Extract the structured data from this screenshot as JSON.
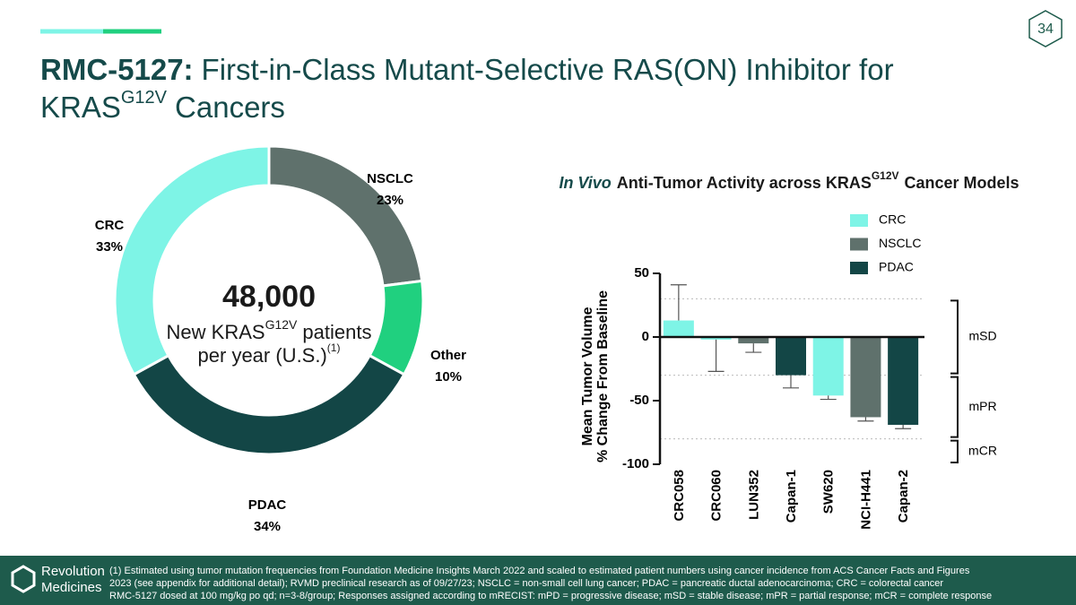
{
  "page_number": "34",
  "title": {
    "lead": "RMC-5127:",
    "line1": "First-in-Class Mutant-Selective RAS(ON) Inhibitor for",
    "line2": "KRAS",
    "superscript": "G12V",
    "tail": "Cancers"
  },
  "chart_data": [
    {
      "type": "pie",
      "categories": [
        "NSCLC",
        "Other",
        "PDAC",
        "CRC"
      ],
      "values": [
        23,
        10,
        34,
        33
      ],
      "value_labels": [
        "23%",
        "10%",
        "34%",
        "33%"
      ],
      "colors": [
        "#5f716c",
        "#20d07f",
        "#134646",
        "#7ef4e6"
      ],
      "center_text": "48,000",
      "center_line1": "New KRAS",
      "center_superscript": "G12V",
      "center_line1_tail": "patients",
      "center_line2": "per year (U.S.)",
      "center_line2_superscript": "(1)"
    },
    {
      "type": "bar",
      "title": {
        "italic": "In Vivo",
        "text": "Anti-Tumor Activity across KRAS",
        "superscript": "G12V",
        "tail": "Cancer Models"
      },
      "y_label": [
        "Mean Tumor Volume",
        "% Change From Baseline"
      ],
      "categories": [
        "CRC058",
        "CRC060",
        "LUN352",
        "Capan-1",
        "SW620",
        "NCI-H441",
        "Capan-2"
      ],
      "series": [
        {
          "name": "CRC",
          "color": "#7ef4e6",
          "values": [
            13,
            -2,
            null,
            null,
            -46,
            null,
            null
          ],
          "errors": [
            28,
            25,
            null,
            null,
            3,
            null,
            null
          ]
        },
        {
          "name": "NSCLC",
          "color": "#5f716c",
          "values": [
            null,
            null,
            -5,
            null,
            null,
            -63,
            null
          ],
          "errors": [
            null,
            null,
            7,
            null,
            null,
            3,
            null
          ]
        },
        {
          "name": "PDAC",
          "color": "#134646",
          "values": [
            null,
            null,
            null,
            -30,
            null,
            null,
            -69
          ],
          "errors": [
            null,
            null,
            null,
            10,
            null,
            null,
            3
          ]
        }
      ],
      "ylim": [
        -100,
        50
      ],
      "yticks": [
        -100,
        -50,
        0,
        50
      ],
      "reference_lines": [
        30,
        -30,
        -80
      ],
      "bands": [
        {
          "label": "mSD",
          "range": [
            30,
            -30
          ]
        },
        {
          "label": "mPR",
          "range": [
            -30,
            -80
          ]
        },
        {
          "label": "mCR",
          "range": [
            -80,
            -100
          ]
        }
      ]
    }
  ],
  "footnotes": [
    "(1) Estimated using tumor mutation frequencies from Foundation Medicine Insights March 2022 and scaled to estimated patient numbers using cancer incidence from ACS Cancer Facts and Figures",
    "2023 (see appendix for additional detail); RVMD preclinical research as of 09/27/23; NSCLC = non-small cell lung cancer; PDAC = pancreatic ductal adenocarcinoma; CRC = colorectal cancer",
    "RMC-5127 dosed at 100 mg/kg po qd; n=3-8/group; Responses assigned according to mRECIST: mPD = progressive disease; mSD = stable disease; mPR = partial response; mCR = complete response"
  ],
  "logo": [
    "Revolution",
    "Medicines"
  ]
}
